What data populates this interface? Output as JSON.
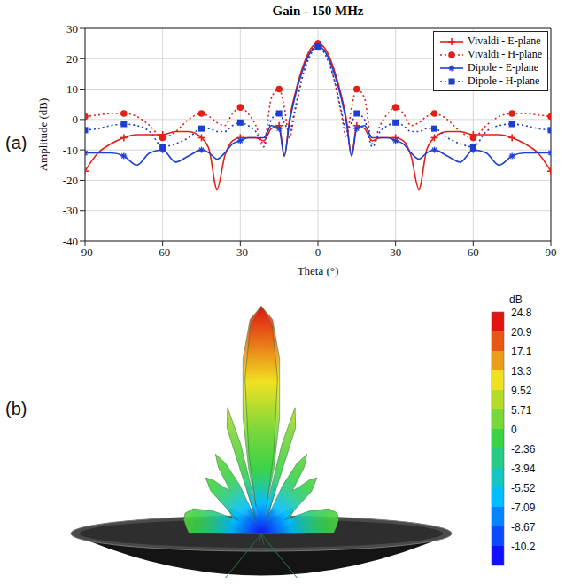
{
  "chart_data": [
    {
      "panel": "(a)",
      "type": "line",
      "title": "Gain - 150 MHz",
      "x_label": "Theta (°)",
      "y_label": "Amplitude (dB)",
      "x": [
        -90,
        -85,
        -80,
        -75,
        -70,
        -65,
        -60,
        -55,
        -50,
        -45,
        -42,
        -39,
        -36,
        -33,
        -30,
        -27,
        -24,
        -21,
        -18,
        -15,
        -13,
        -11,
        -9,
        -6,
        -3,
        0,
        3,
        6,
        9,
        11,
        13,
        15,
        18,
        21,
        24,
        27,
        30,
        33,
        36,
        39,
        42,
        45,
        50,
        55,
        60,
        65,
        70,
        75,
        80,
        85,
        90
      ],
      "series": [
        {
          "name": "Vivaldi - E-plane",
          "color": "#e32017",
          "marker": "plus",
          "line_style": "solid",
          "values": [
            -17,
            -11,
            -8,
            -6,
            -5,
            -5,
            -5,
            -4,
            -4,
            -6,
            -10,
            -23,
            -12,
            -7,
            -6,
            -6,
            -6,
            -7,
            -3,
            -2,
            -12,
            0,
            8,
            17,
            23,
            25,
            23,
            17,
            8,
            0,
            -12,
            -2,
            -3,
            -7,
            -6,
            -6,
            -6,
            -7,
            -12,
            -23,
            -10,
            -6,
            -4,
            -4,
            -5,
            -5,
            -5,
            -6,
            -8,
            -11,
            -17
          ]
        },
        {
          "name": "Vivaldi - H-plane",
          "color": "#e32017",
          "marker": "circle",
          "line_style": "dotted",
          "values": [
            1,
            1.5,
            2,
            2,
            1,
            -2,
            -6,
            -4,
            0,
            2,
            1,
            -1,
            -2,
            2,
            4,
            2,
            -2,
            -8,
            7,
            10,
            4,
            -6,
            2,
            14,
            22,
            25,
            22,
            14,
            2,
            -6,
            4,
            10,
            7,
            -8,
            -2,
            2,
            4,
            2,
            -2,
            -1,
            1,
            2,
            0,
            -4,
            -6,
            -2,
            1,
            2,
            2,
            1.5,
            1
          ]
        },
        {
          "name": "Dipole - E-plane",
          "color": "#1c3fd1",
          "marker": "asterisk",
          "line_style": "solid",
          "values": [
            -11,
            -11,
            -11,
            -12,
            -15,
            -11,
            -10,
            -14,
            -12,
            -10,
            -11,
            -13,
            -11,
            -8,
            -7,
            -6,
            -6,
            -6,
            -2,
            -3,
            -12,
            -1,
            7,
            16,
            22,
            24,
            22,
            16,
            7,
            -1,
            -12,
            -3,
            -2,
            -6,
            -6,
            -6,
            -7,
            -8,
            -11,
            -13,
            -11,
            -10,
            -12,
            -14,
            -10,
            -11,
            -15,
            -12,
            -11,
            -11,
            -11
          ]
        },
        {
          "name": "Dipole - H-plane",
          "color": "#1c3fd1",
          "marker": "square",
          "line_style": "dotted",
          "values": [
            -3.5,
            -3,
            -2,
            -1.5,
            -2,
            -4,
            -9,
            -8,
            -6,
            -3,
            -3,
            -4,
            -4,
            -2,
            -1,
            -2,
            -4,
            -9,
            0,
            2,
            -1,
            -4,
            3,
            14,
            21,
            24,
            21,
            14,
            3,
            -4,
            -1,
            2,
            0,
            -9,
            -4,
            -2,
            -1,
            -2,
            -4,
            -4,
            -3,
            -3,
            -6,
            -8,
            -9,
            -4,
            -2,
            -1.5,
            -2,
            -3,
            -3.5
          ]
        }
      ],
      "xlim": [
        -90,
        90
      ],
      "xticks": [
        -90,
        -60,
        -30,
        0,
        30,
        60,
        90
      ],
      "ylim": [
        -40,
        30
      ],
      "yticks": [
        -40,
        -30,
        -20,
        -10,
        0,
        10,
        20,
        30
      ],
      "grid": true,
      "legend": "upper right"
    },
    {
      "panel": "(b)",
      "type": "pattern_3d",
      "colorbar": {
        "label": "dB",
        "range": [
          -10.2,
          24.8
        ],
        "ticks": [
          -10.2,
          -8.67,
          -7.09,
          -5.52,
          -3.94,
          -2.36,
          0,
          5.71,
          9.52,
          13.3,
          17.1,
          20.9,
          24.8
        ]
      }
    }
  ]
}
